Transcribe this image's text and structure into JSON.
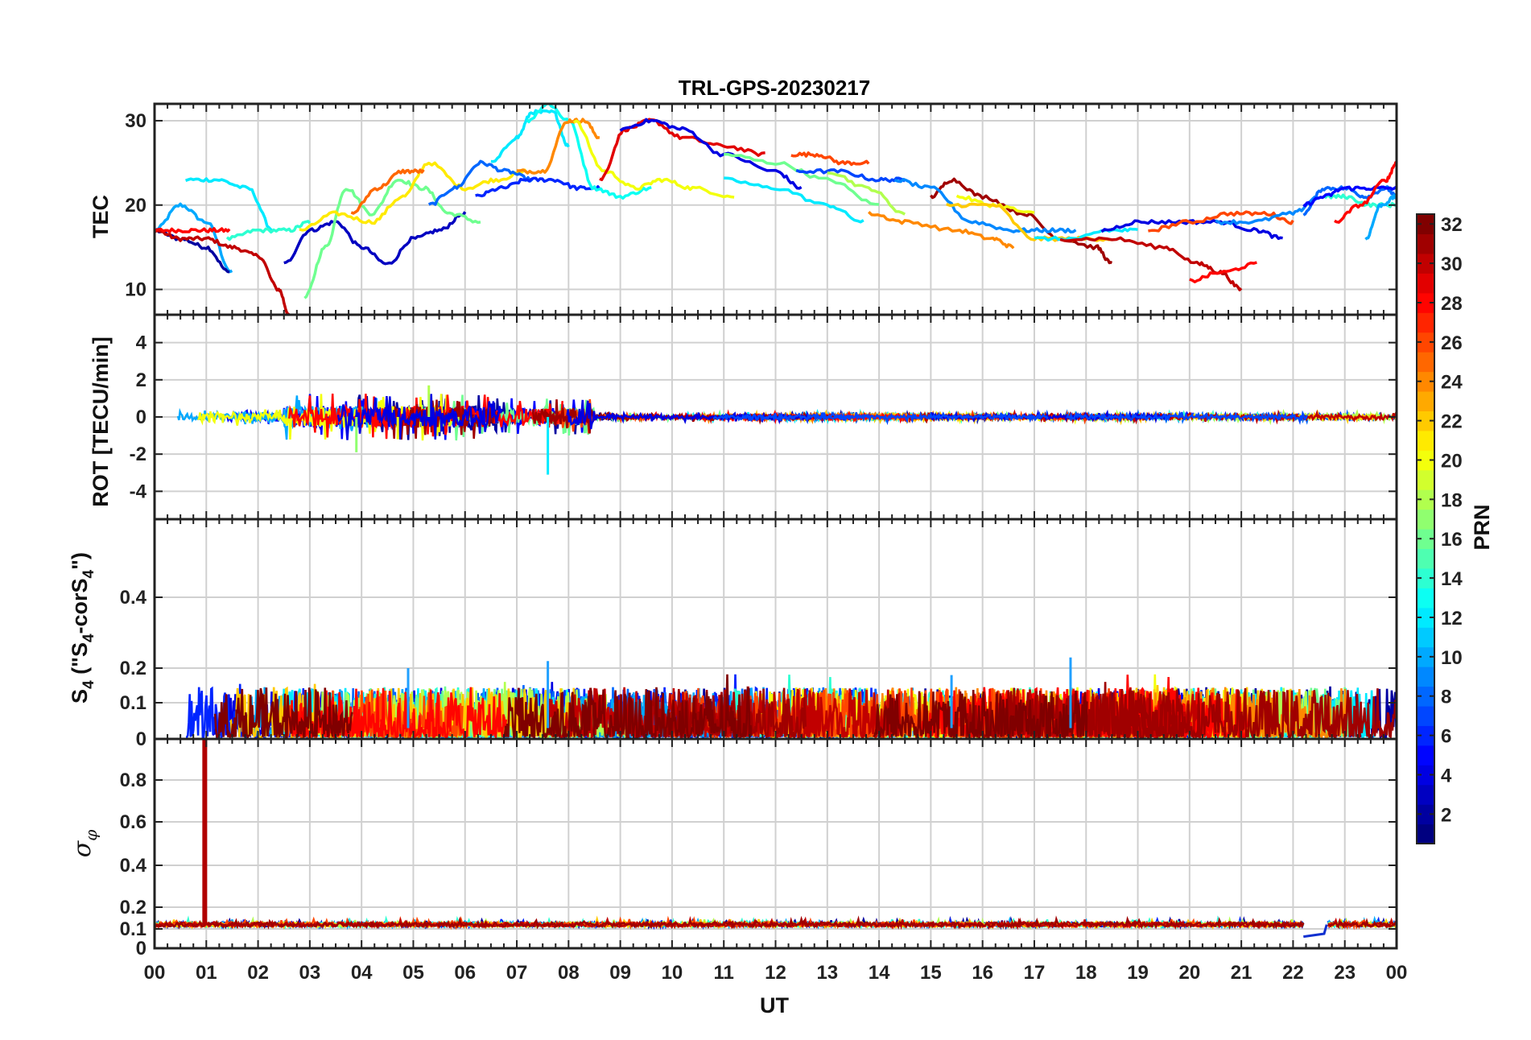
{
  "chart_data": {
    "type": "line",
    "title": "TRL-GPS-20230217",
    "xlabel": "UT",
    "x_tick_labels": [
      "00",
      "01",
      "02",
      "03",
      "04",
      "05",
      "06",
      "07",
      "08",
      "09",
      "10",
      "11",
      "12",
      "13",
      "14",
      "15",
      "16",
      "17",
      "18",
      "19",
      "20",
      "21",
      "22",
      "23",
      "00"
    ],
    "x_range_hours": [
      0,
      24
    ],
    "grid": true,
    "colorbar": {
      "label": "PRN",
      "range": [
        1,
        32
      ],
      "tick_labels": [
        "2",
        "4",
        "6",
        "8",
        "10",
        "12",
        "14",
        "16",
        "18",
        "20",
        "22",
        "24",
        "26",
        "28",
        "30",
        "32"
      ],
      "colormap": "jet"
    },
    "panels": [
      {
        "id": "tec",
        "ylabel": "TEC",
        "ylim": [
          7,
          32
        ],
        "yticks": [
          10,
          20,
          30
        ],
        "series": [
          {
            "prn": 10,
            "x": [
              0,
              0.5,
              1.0,
              1.5
            ],
            "y": [
              17,
              20,
              18,
              12
            ]
          },
          {
            "prn": 2,
            "x": [
              0,
              0.5,
              1.0,
              1.45
            ],
            "y": [
              17,
              16,
              15,
              12
            ]
          },
          {
            "prn": 30,
            "x": [
              0,
              0.5,
              1.0,
              1.5,
              2.0,
              2.4,
              2.6
            ],
            "y": [
              17,
              16,
              16,
              15,
              14,
              10,
              7
            ]
          },
          {
            "prn": 28,
            "x": [
              0,
              0.5,
              1.0,
              1.45
            ],
            "y": [
              17,
              17,
              17,
              17
            ]
          },
          {
            "prn": 12,
            "x": [
              0.6,
              1.2,
              1.8,
              2.3
            ],
            "y": [
              23,
              23,
              22,
              17
            ]
          },
          {
            "prn": 14,
            "x": [
              1.4,
              2.0,
              2.6,
              3.0
            ],
            "y": [
              16,
              17,
              17,
              18
            ]
          },
          {
            "prn": 3,
            "x": [
              2.5,
              3.0,
              3.5,
              4.0,
              4.5,
              5.0,
              5.5,
              6.0
            ],
            "y": [
              13,
              17,
              18,
              15,
              13,
              16,
              17,
              19
            ]
          },
          {
            "prn": 16,
            "x": [
              2.9,
              3.3,
              3.7,
              4.2,
              4.7,
              5.2,
              5.7,
              6.3
            ],
            "y": [
              9,
              15,
              22,
              19,
              23,
              22,
              19,
              18
            ]
          },
          {
            "prn": 21,
            "x": [
              2.8,
              3.5,
              4.2,
              4.8,
              5.3,
              6.0,
              6.6,
              7.2
            ],
            "y": [
              17,
              19,
              18,
              21,
              25,
              22,
              23,
              24
            ]
          },
          {
            "prn": 25,
            "x": [
              3.8,
              4.3,
              4.8,
              5.2
            ],
            "y": [
              19,
              22,
              24,
              24
            ]
          },
          {
            "prn": 8,
            "x": [
              5.3,
              5.8,
              6.3,
              6.8,
              7.3
            ],
            "y": [
              20,
              22,
              25,
              24,
              23
            ]
          },
          {
            "prn": 6,
            "x": [
              6.2,
              6.7,
              7.2,
              7.7,
              8.2,
              8.6
            ],
            "y": [
              21,
              22,
              23,
              23,
              22,
              22
            ]
          },
          {
            "prn": 12,
            "x": [
              6.5,
              7.0,
              7.3,
              7.7,
              8.0
            ],
            "y": [
              25,
              28,
              31,
              31,
              27
            ]
          },
          {
            "prn": 13,
            "x": [
              7.2,
              7.6,
              8.0,
              8.5,
              9.0,
              9.6
            ],
            "y": [
              30,
              32,
              30,
              22,
              21,
              22
            ]
          },
          {
            "prn": 24,
            "x": [
              7.0,
              7.5,
              8.0,
              8.3,
              8.6
            ],
            "y": [
              24,
              24,
              30,
              30,
              28
            ]
          },
          {
            "prn": 20,
            "x": [
              8.1,
              8.7,
              9.3,
              9.8,
              10.4,
              11.2
            ],
            "y": [
              30,
              24,
              22,
              23,
              22,
              21
            ]
          },
          {
            "prn": 29,
            "x": [
              8.6,
              9.1,
              9.6,
              10.2,
              11.0,
              11.8
            ],
            "y": [
              23,
              29,
              30,
              28,
              27,
              26
            ]
          },
          {
            "prn": 4,
            "x": [
              9.0,
              9.6,
              10.2,
              11.0,
              12.0,
              12.5
            ],
            "y": [
              29,
              30,
              29,
              26,
              24,
              22
            ]
          },
          {
            "prn": 16,
            "x": [
              11.0,
              12.0,
              13.0,
              14.0
            ],
            "y": [
              26,
              25,
              23,
              20
            ]
          },
          {
            "prn": 26,
            "x": [
              12.3,
              12.8,
              13.3,
              13.8
            ],
            "y": [
              26,
              26,
              25,
              25
            ]
          },
          {
            "prn": 12,
            "x": [
              11.0,
              12.0,
              13.0,
              13.7
            ],
            "y": [
              23,
              22,
              20,
              18
            ]
          },
          {
            "prn": 7,
            "x": [
              12.4,
              13.2,
              14.0,
              14.5
            ],
            "y": [
              24,
              24,
              23,
              23
            ]
          },
          {
            "prn": 18,
            "x": [
              13.0,
              13.8,
              14.5
            ],
            "y": [
              24,
              22,
              19
            ]
          },
          {
            "prn": 24,
            "x": [
              13.8,
              14.5,
              15.5,
              16.2,
              16.6
            ],
            "y": [
              19,
              18,
              17,
              16,
              15
            ]
          },
          {
            "prn": 31,
            "x": [
              15.0,
              15.4,
              16.0,
              16.8,
              17.5,
              18.2,
              18.5
            ],
            "y": [
              21,
              23,
              21,
              19,
              16,
              15,
              13
            ]
          },
          {
            "prn": 9,
            "x": [
              14.3,
              15.0,
              15.8,
              16.6,
              17.2,
              17.8
            ],
            "y": [
              23,
              22,
              18,
              17,
              17,
              17
            ]
          },
          {
            "prn": 20,
            "x": [
              15.5,
              16.2,
              17.0
            ],
            "y": [
              21,
              20,
              19
            ]
          },
          {
            "prn": 22,
            "x": [
              15.3,
              16.2,
              17.0,
              17.8,
              18.5
            ],
            "y": [
              20,
              20,
              16,
              16,
              16
            ]
          },
          {
            "prn": 12,
            "x": [
              17.0,
              17.8,
              18.4,
              19.0
            ],
            "y": [
              16,
              16,
              17,
              17
            ]
          },
          {
            "prn": 30,
            "x": [
              17.5,
              18.5,
              19.5,
              20.2,
              20.6,
              21.0
            ],
            "y": [
              16,
              16,
              15,
              13,
              12,
              10
            ]
          },
          {
            "prn": 4,
            "x": [
              18.3,
              19.0,
              19.8,
              20.6,
              21.3,
              21.8
            ],
            "y": [
              17,
              18,
              18,
              18,
              17,
              16
            ]
          },
          {
            "prn": 28,
            "x": [
              20.0,
              20.6,
              21.3
            ],
            "y": [
              11,
              12,
              13
            ]
          },
          {
            "prn": 26,
            "x": [
              19.2,
              20.0,
              20.8,
              21.5,
              22.0
            ],
            "y": [
              17,
              18,
              19,
              19,
              18
            ]
          },
          {
            "prn": 9,
            "x": [
              20.5,
              21.2,
              22.0,
              22.5
            ],
            "y": [
              18,
              18,
              19,
              21
            ]
          },
          {
            "prn": 14,
            "x": [
              22.6,
              23.0,
              23.5,
              24.0
            ],
            "y": [
              21,
              21,
              20,
              20
            ]
          },
          {
            "prn": 8,
            "x": [
              22.2,
              22.6,
              23.0,
              23.4,
              23.8,
              24.0
            ],
            "y": [
              19,
              22,
              22,
              21,
              22,
              21
            ]
          },
          {
            "prn": 5,
            "x": [
              22.2,
              22.6,
              23.0,
              23.5,
              24.0
            ],
            "y": [
              20,
              21,
              22,
              22,
              22
            ]
          },
          {
            "prn": 28,
            "x": [
              22.8,
              23.3,
              23.8,
              24.0
            ],
            "y": [
              18,
              20,
              23,
              25
            ]
          },
          {
            "prn": 10,
            "x": [
              23.4,
              23.7,
              24.0
            ],
            "y": [
              16,
              20,
              21
            ]
          }
        ]
      },
      {
        "id": "rot",
        "ylabel": "ROT [TECU/min]",
        "ylim": [
          -5.5,
          5.5
        ],
        "yticks": [
          -4,
          -2,
          0,
          2,
          4
        ],
        "noise_bands": [
          {
            "x0": 0.0,
            "x1": 2.5,
            "amp": 0.25
          },
          {
            "x0": 2.5,
            "x1": 6.5,
            "amp": 0.7
          },
          {
            "x0": 6.5,
            "x1": 8.5,
            "amp": 0.55
          },
          {
            "x0": 8.5,
            "x1": 24.0,
            "amp": 0.12
          }
        ],
        "spikes": [
          {
            "x": 7.6,
            "y": -3.1,
            "prn": 12
          },
          {
            "x": 3.9,
            "y": -1.9,
            "prn": 17
          },
          {
            "x": 5.3,
            "y": 1.7,
            "prn": 18
          },
          {
            "x": 4.7,
            "y": -1.2,
            "prn": 20
          }
        ]
      },
      {
        "id": "s4",
        "ylabel": "S4 (\"S4-corS4\")",
        "ylim": [
          0,
          0.6
        ],
        "yticks": [
          0,
          0.1,
          0.2,
          0.4
        ],
        "typical_max": 0.17,
        "peak_values": [
          {
            "x": 7.6,
            "y": 0.22
          },
          {
            "x": 17.7,
            "y": 0.23
          },
          {
            "x": 4.9,
            "y": 0.2
          },
          {
            "x": 15.4,
            "y": 0.18
          }
        ]
      },
      {
        "id": "sigma_phi",
        "ylabel": "σφ",
        "ylim": [
          0,
          1.0
        ],
        "yticks": [
          0,
          0.1,
          0.2,
          0.4,
          0.6,
          0.8
        ],
        "baseline": 0.12,
        "spike": {
          "x": 0.97,
          "y": 1.0,
          "prn": 31
        },
        "dip": {
          "x0": 22.2,
          "x1": 22.65,
          "y": 0.06
        }
      }
    ]
  }
}
